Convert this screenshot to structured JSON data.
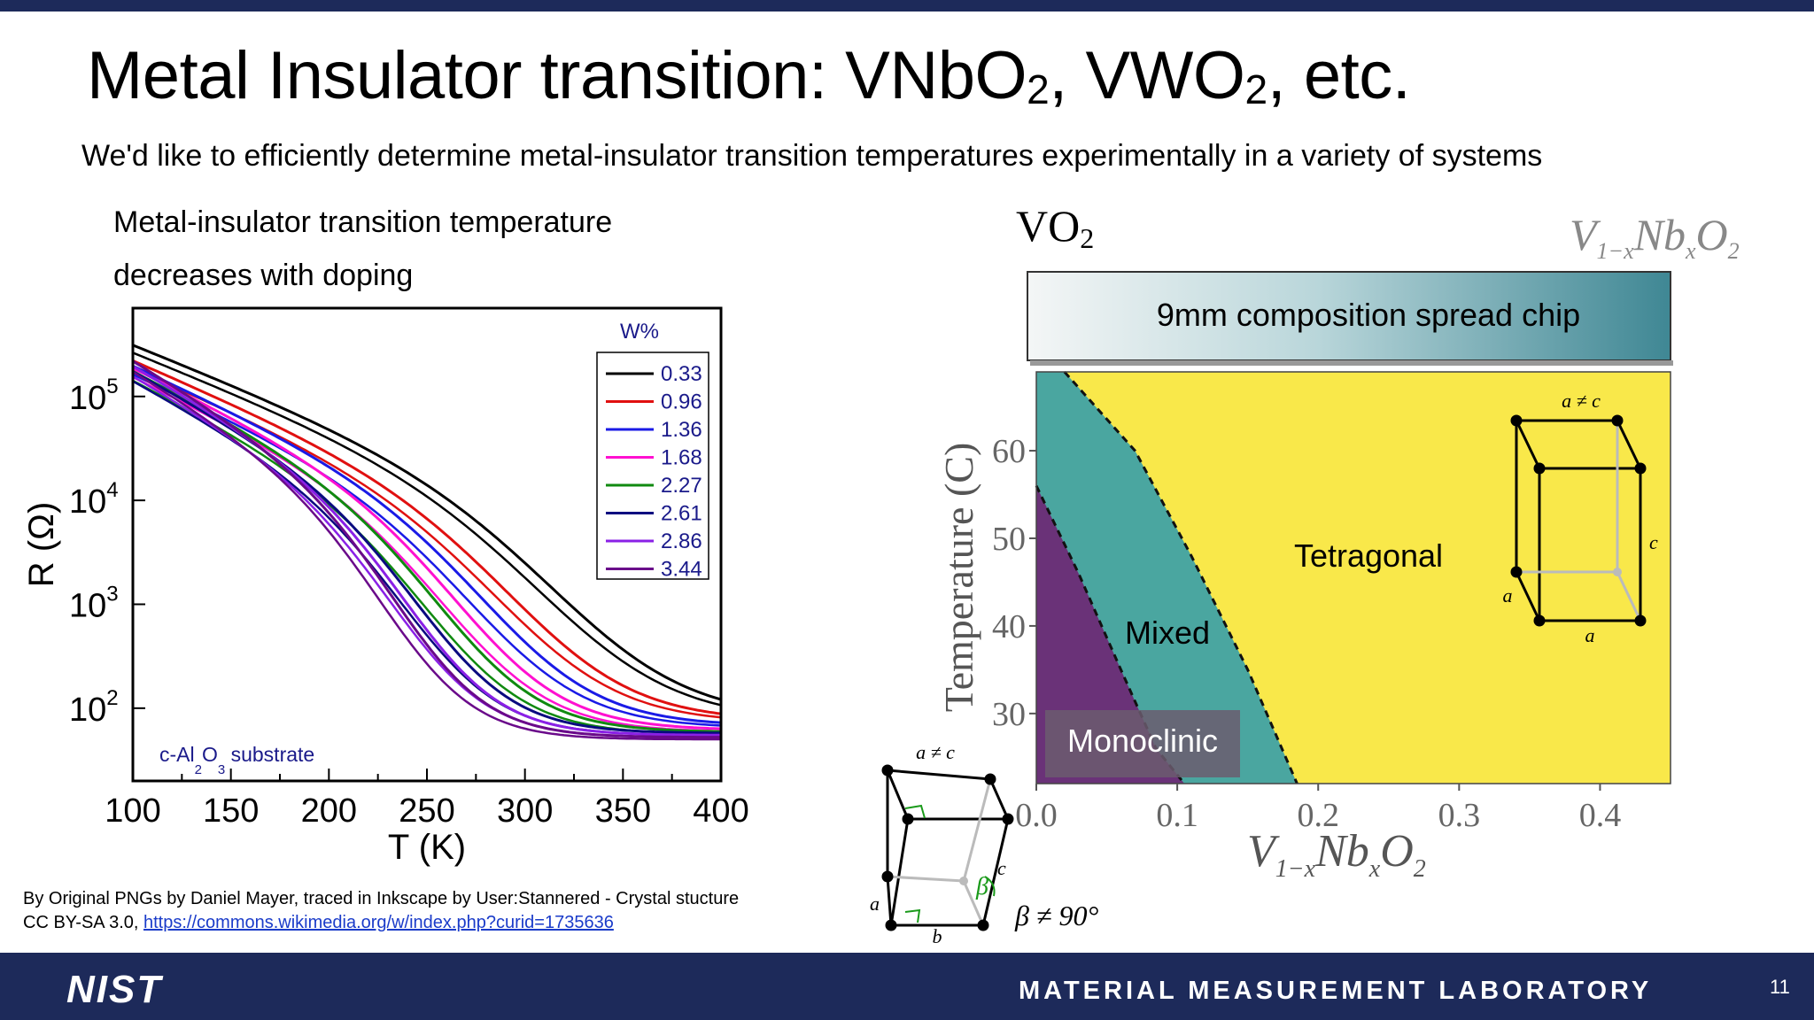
{
  "slide": {
    "title_main": "Metal Insulator transition: VNbO",
    "title_sub1": "2",
    "title_mid": ", VWO",
    "title_sub2": "2",
    "title_end": ", etc.",
    "subtitle": "We'd like to efficiently determine metal-insulator transition temperatures experimentally in a variety of systems",
    "note_line1": "Metal-insulator transition temperature",
    "note_line2": "decreases with doping",
    "credit_line1": "By Original PNGs by Daniel Mayer, traced in Inkscape by User:Stannered - Crystal stucture",
    "credit_line2_prefix": "CC BY-SA 3.0, ",
    "credit_link": "https://commons.wikimedia.org/w/index.php?curid=1735636",
    "page_number": "11",
    "footer_logo": "NIST",
    "footer_lab": "MATERIAL MEASUREMENT LABORATORY"
  },
  "chart_data": [
    {
      "type": "line",
      "xlabel": "T (K)",
      "ylabel": "R (Ω)",
      "xlim": [
        100,
        400
      ],
      "ylim_log10": [
        1.3,
        5.85
      ],
      "xticks": [
        "100",
        "150",
        "200",
        "250",
        "300",
        "350",
        "400"
      ],
      "yticks": [
        {
          "base": "10",
          "exp": "2",
          "v": 2
        },
        {
          "base": "10",
          "exp": "3",
          "v": 3
        },
        {
          "base": "10",
          "exp": "4",
          "v": 4
        },
        {
          "base": "10",
          "exp": "5",
          "v": 5
        }
      ],
      "legend_title": "W%",
      "legend_position": "top-right",
      "annotation": {
        "text1": "c-Al",
        "sub1": "2",
        "text2": "O",
        "sub2": "3",
        "text3": " substrate"
      },
      "series": [
        {
          "name": "0.33",
          "color": "#000000",
          "T_mit": 333,
          "log_r100": 5.5,
          "log_r_low": 1.9
        },
        {
          "name": "0.96",
          "color": "#e01010",
          "T_mit": 310,
          "log_r100": 5.35,
          "log_r_low": 1.88
        },
        {
          "name": "1.36",
          "color": "#1a1ae6",
          "T_mit": 295,
          "log_r100": 5.3,
          "log_r_low": 1.83
        },
        {
          "name": "1.68",
          "color": "#ff10d0",
          "T_mit": 280,
          "log_r100": 5.28,
          "log_r_low": 1.79
        },
        {
          "name": "2.27",
          "color": "#108a10",
          "T_mit": 270,
          "log_r100": 5.25,
          "log_r_low": 1.77
        },
        {
          "name": "2.61",
          "color": "#0a0a80",
          "T_mit": 258,
          "log_r100": 5.25,
          "log_r_low": 1.76
        },
        {
          "name": "2.86",
          "color": "#8a20e6",
          "T_mit": 252,
          "log_r100": 5.3,
          "log_r_low": 1.74
        },
        {
          "name": "3.44",
          "color": "#6a0a8a",
          "T_mit": 246,
          "log_r100": 5.35,
          "log_r_low": 1.72
        }
      ]
    },
    {
      "type": "heatmap",
      "xlabel_main": "V",
      "xlabel_sub1": "1−x",
      "xlabel_mid": "Nb",
      "xlabel_sub2": "x",
      "xlabel_end": "O",
      "xlabel_sub3": "2",
      "ylabel": "Temperature (C)",
      "xlim": [
        0.0,
        0.45
      ],
      "ylim": [
        22,
        69
      ],
      "xticks": [
        "0.0",
        "0.1",
        "0.2",
        "0.3",
        "0.4"
      ],
      "yticks": [
        "30",
        "40",
        "50",
        "60"
      ],
      "regions": [
        {
          "name": "Monoclinic",
          "color": "#6a3278"
        },
        {
          "name": "Mixed",
          "color": "#4aa6a0"
        },
        {
          "name": "Tetragonal",
          "color": "#f9e84a"
        }
      ],
      "boundary_inner": [
        [
          0.0,
          56
        ],
        [
          0.03,
          46
        ],
        [
          0.06,
          35
        ],
        [
          0.085,
          26
        ],
        [
          0.105,
          22
        ]
      ],
      "boundary_outer": [
        [
          0.02,
          69
        ],
        [
          0.07,
          60
        ],
        [
          0.11,
          48
        ],
        [
          0.15,
          35
        ],
        [
          0.185,
          22
        ]
      ]
    }
  ],
  "diagram": {
    "left_label": "VO",
    "left_label_sub": "2",
    "right_label_main": "V",
    "right_label_sub1": "1−x",
    "right_label_mid": "Nb",
    "right_label_sub2": "x",
    "right_label_end": "O",
    "right_label_sub3": "2",
    "chip_label": "9mm composition spread chip",
    "tetragonal_cell": {
      "top": "a ≠ c",
      "side": "c",
      "left": "a",
      "bottom": "a"
    },
    "monoclinic_cell": {
      "top": "a ≠ c",
      "side": "c",
      "left": "a",
      "bottom": "b",
      "beta": "β",
      "beta_note": "β ≠ 90°"
    }
  }
}
